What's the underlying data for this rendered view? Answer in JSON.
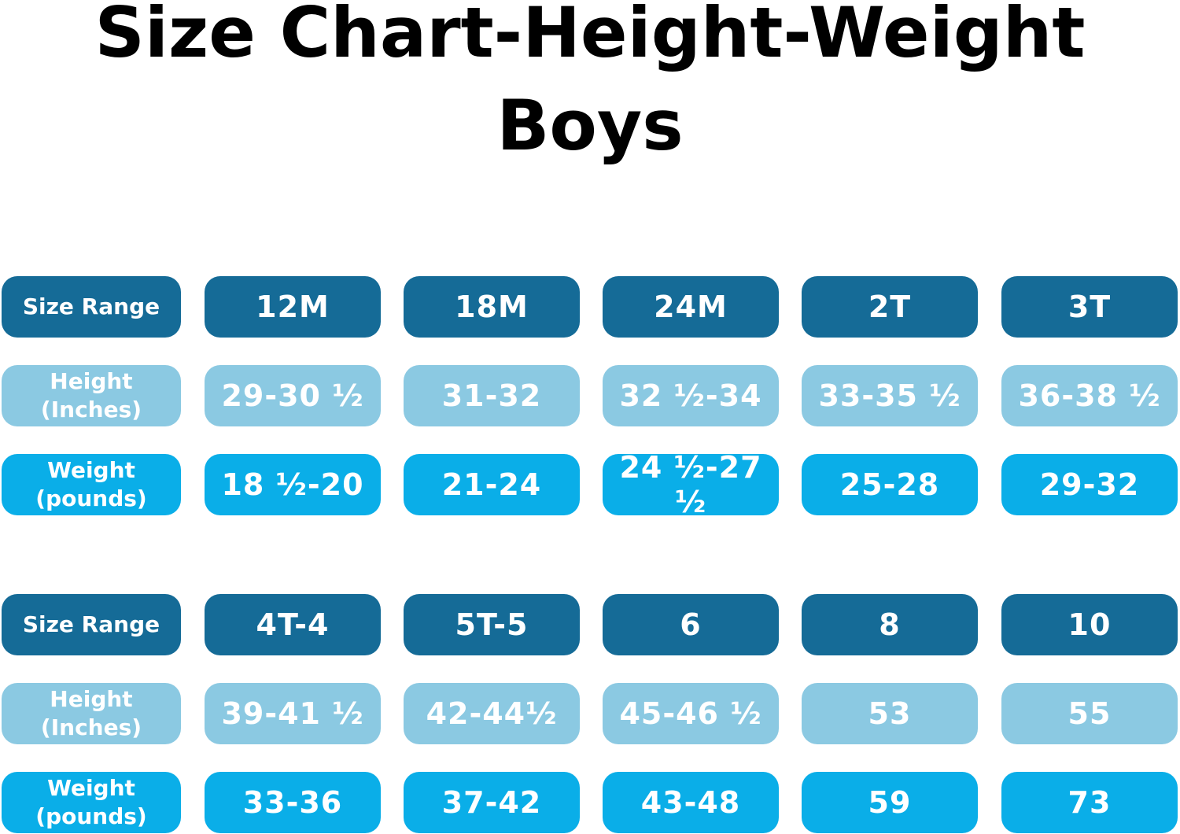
{
  "title_line1": "Size Chart-Height-Weight",
  "title_line2": "Boys",
  "row_labels": {
    "size": "Size Range",
    "height": "Height\n(Inches)",
    "weight": "Weight\n(pounds)"
  },
  "tables": [
    {
      "sizes": [
        "12M",
        "18M",
        "24M",
        "2T",
        "3T"
      ],
      "heights": [
        "29-30 ½",
        "31-32",
        "32 ½-34",
        "33-35 ½",
        "36-38 ½"
      ],
      "weights": [
        "18 ½-20",
        "21-24",
        "24 ½-27 ½",
        "25-28",
        "29-32"
      ]
    },
    {
      "sizes": [
        "4T-4",
        "5T-5",
        "6",
        "8",
        "10"
      ],
      "heights": [
        "39-41 ½",
        "42-44½",
        "45-46 ½",
        "53",
        "55"
      ],
      "weights": [
        "33-36",
        "37-42",
        "43-48",
        "59",
        "73"
      ]
    }
  ],
  "colors": {
    "size_row": "#156b97",
    "height_row": "#8bc9e2",
    "weight_row": "#0aaee8",
    "text": "#ffffff",
    "title": "#000000"
  }
}
